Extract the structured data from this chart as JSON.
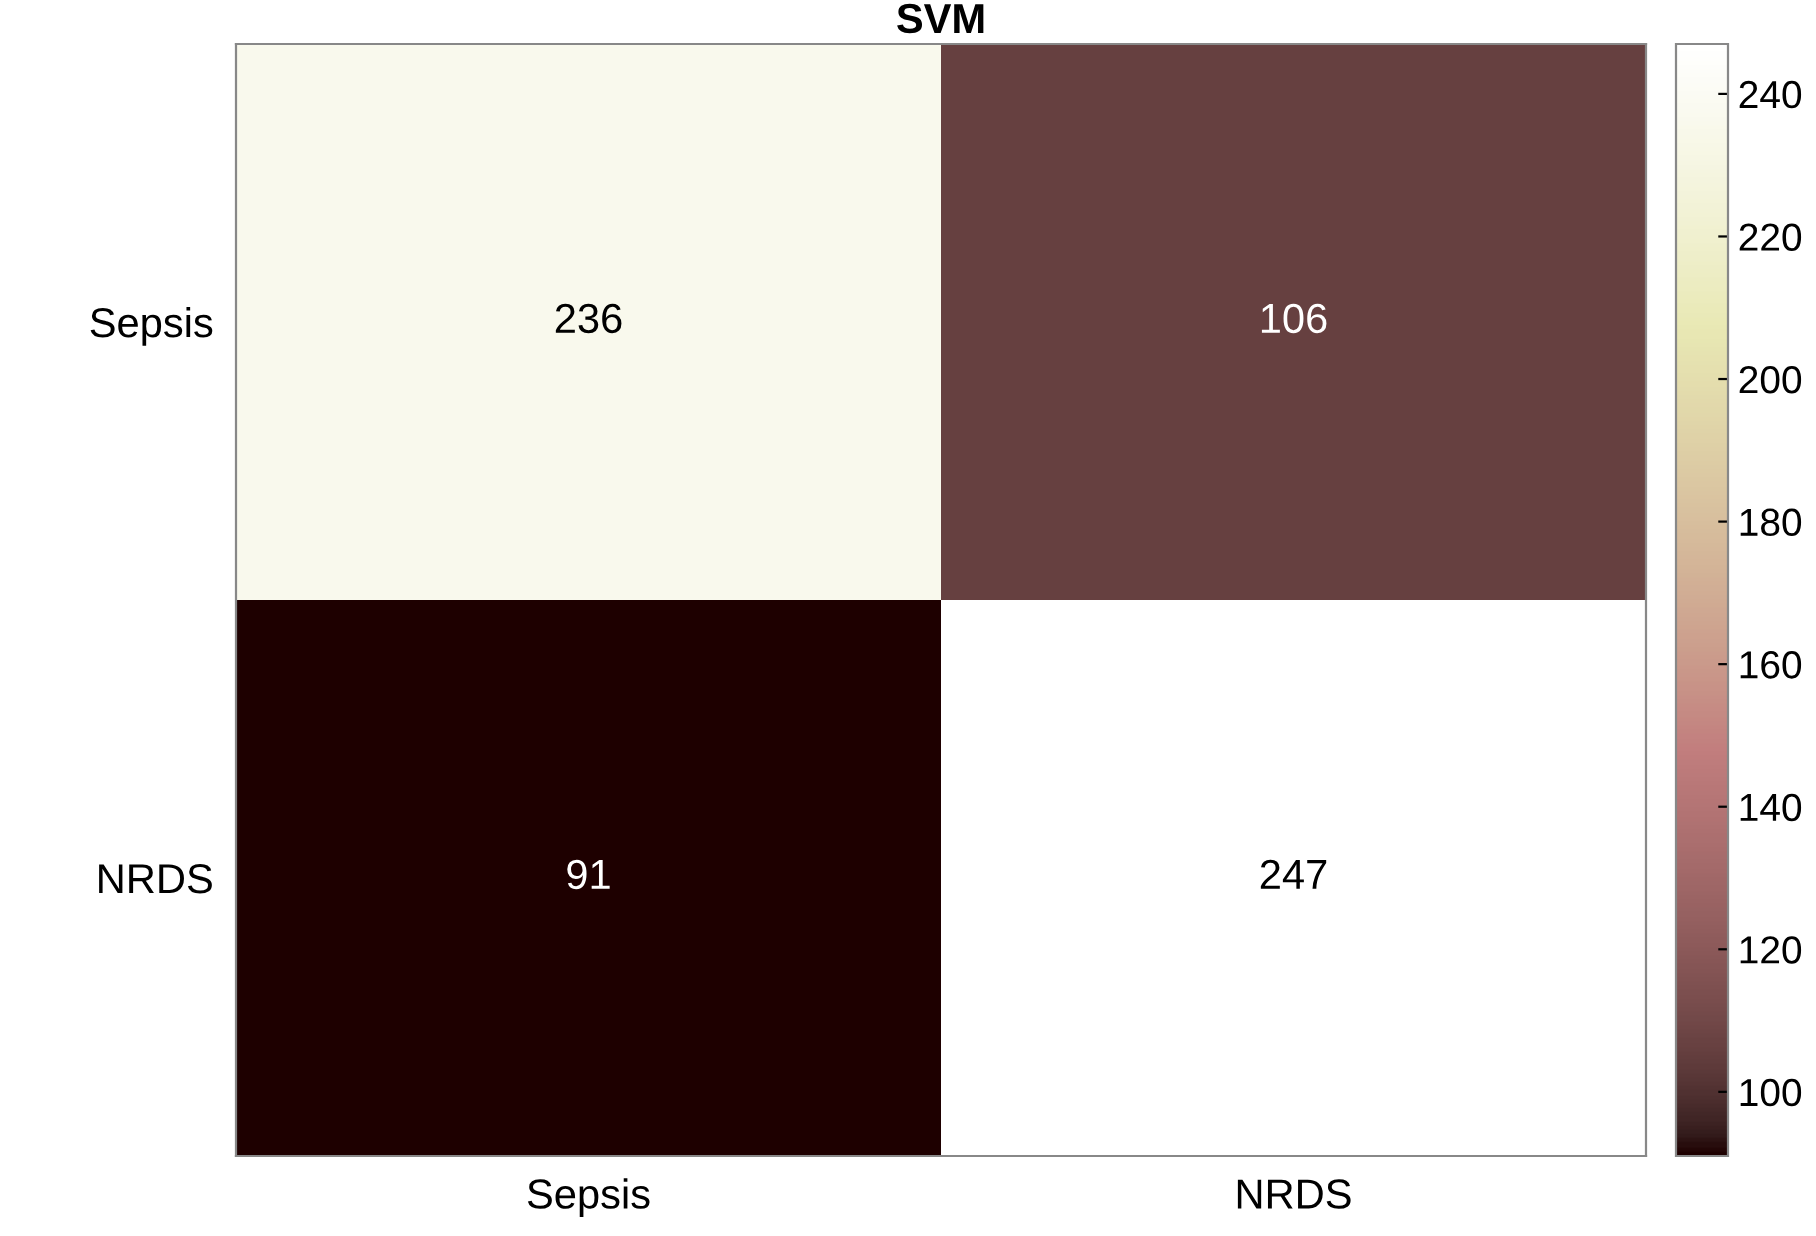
{
  "chart_data": {
    "type": "heatmap",
    "title": "SVM",
    "categories": [
      "Sepsis",
      "NRDS"
    ],
    "y_categories": [
      "Sepsis",
      "NRDS"
    ],
    "cells": [
      [
        236,
        106
      ],
      [
        91,
        247
      ]
    ],
    "data_labels": true,
    "clim": [
      91,
      247
    ],
    "cticks": [
      100,
      120,
      140,
      160,
      180,
      200,
      220,
      240
    ]
  }
}
